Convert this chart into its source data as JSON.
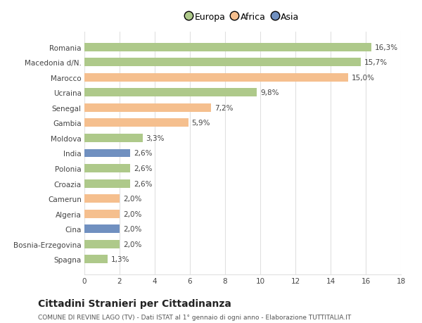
{
  "countries": [
    "Romania",
    "Macedonia d/N.",
    "Marocco",
    "Ucraina",
    "Senegal",
    "Gambia",
    "Moldova",
    "India",
    "Polonia",
    "Croazia",
    "Camerun",
    "Algeria",
    "Cina",
    "Bosnia-Erzegovina",
    "Spagna"
  ],
  "values": [
    16.3,
    15.7,
    15.0,
    9.8,
    7.2,
    5.9,
    3.3,
    2.6,
    2.6,
    2.6,
    2.0,
    2.0,
    2.0,
    2.0,
    1.3
  ],
  "labels": [
    "16,3%",
    "15,7%",
    "15,0%",
    "9,8%",
    "7,2%",
    "5,9%",
    "3,3%",
    "2,6%",
    "2,6%",
    "2,6%",
    "2,0%",
    "2,0%",
    "2,0%",
    "2,0%",
    "1,3%"
  ],
  "continents": [
    "Europa",
    "Europa",
    "Africa",
    "Europa",
    "Africa",
    "Africa",
    "Europa",
    "Asia",
    "Europa",
    "Europa",
    "Africa",
    "Africa",
    "Asia",
    "Europa",
    "Europa"
  ],
  "colors": {
    "Europa": "#aec98a",
    "Africa": "#f5bf8e",
    "Asia": "#7090c0"
  },
  "legend_labels": [
    "Europa",
    "Africa",
    "Asia"
  ],
  "legend_colors": [
    "#aec98a",
    "#f5bf8e",
    "#7090c0"
  ],
  "xlim": [
    0,
    18
  ],
  "xticks": [
    0,
    2,
    4,
    6,
    8,
    10,
    12,
    14,
    16,
    18
  ],
  "title": "Cittadini Stranieri per Cittadinanza",
  "subtitle": "COMUNE DI REVINE LAGO (TV) - Dati ISTAT al 1° gennaio di ogni anno - Elaborazione TUTTITALIA.IT",
  "bg_color": "#ffffff",
  "grid_color": "#e0e0e0",
  "bar_height": 0.55,
  "label_fontsize": 7.5,
  "tick_fontsize": 7.5,
  "title_fontsize": 10,
  "subtitle_fontsize": 6.5
}
